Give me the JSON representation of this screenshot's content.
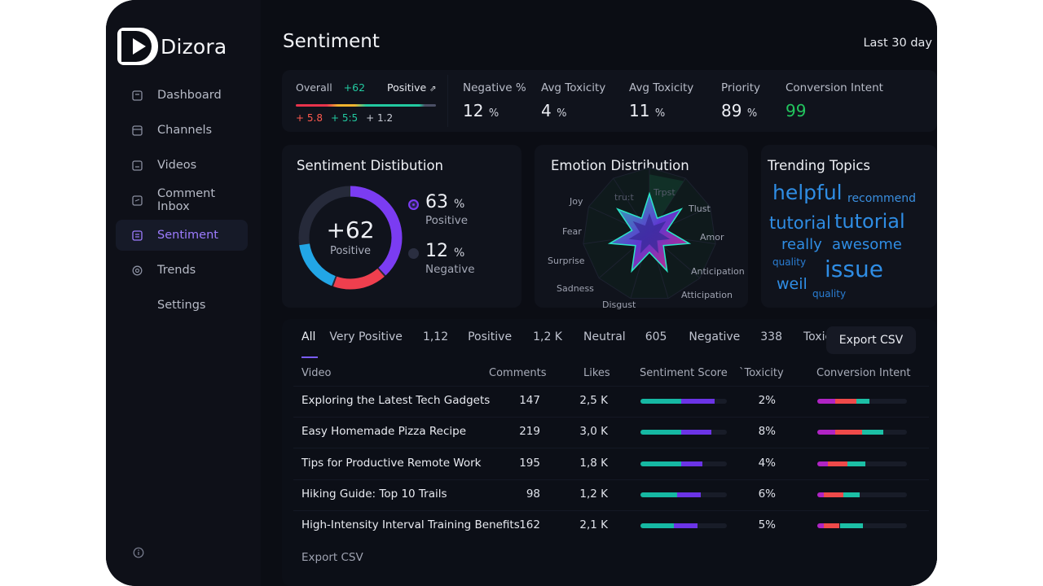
{
  "app": {
    "name": "Dizora"
  },
  "sidebar": {
    "items": [
      {
        "label": "Dashboard",
        "icon": "dashboard-icon"
      },
      {
        "label": "Channels",
        "icon": "channels-icon"
      },
      {
        "label": "Videos",
        "icon": "videos-icon"
      },
      {
        "label": "Comment Inbox",
        "icon": "comment-inbox-icon"
      },
      {
        "label": "Sentiment",
        "icon": "sentiment-icon",
        "active": true
      },
      {
        "label": "Trends",
        "icon": "trends-icon"
      },
      {
        "label": "Settings",
        "icon": ""
      }
    ]
  },
  "header": {
    "title": "Sentiment",
    "range": "Last 30  day"
  },
  "kpis": {
    "overall": {
      "label": "Overall",
      "score": "+62",
      "trend_label": "Positive",
      "trend_arrow": "⇗",
      "n1": "+ 5.8",
      "n2": "+ 5:5",
      "n3": "+ 1.2"
    },
    "negative": {
      "label": "Negative %",
      "value": "12",
      "unit": "%"
    },
    "toxicity1": {
      "label": "Avg Toxicity",
      "value": "4",
      "unit": "%"
    },
    "toxicity2": {
      "label": "Avg Toxicity",
      "value": "11",
      "unit": "%"
    },
    "priority": {
      "label": "Priority",
      "value": "89",
      "unit": "%"
    },
    "conversion": {
      "label": "Conversion Intent",
      "value": "99"
    }
  },
  "sentiment_distribution": {
    "title": "Sentiment Distibution",
    "center_value": "+62",
    "center_label": "Positive",
    "positive": {
      "value": "63",
      "unit": "%",
      "label": "Positive"
    },
    "negative": {
      "value": "12",
      "unit": "%",
      "label": "Negative"
    }
  },
  "emotion_distribution": {
    "title": "Emotion Distribution",
    "labels": [
      "Trpst",
      "Tlust",
      "Amor",
      "Anticipation",
      "Atticipation",
      "Disgust",
      "Sadness",
      "Surprise",
      "Fear",
      "Joy",
      "tru:t"
    ]
  },
  "trending_topics": {
    "title": "Trending Topics",
    "words": [
      "helpful",
      "recommend",
      "tutorial",
      "tutorial",
      "really",
      "awesome",
      "quality",
      "issue",
      "weil",
      "quality"
    ]
  },
  "table": {
    "filters": [
      "All",
      "Very Positive",
      "1,12",
      "Positive",
      "1,2 K",
      "Neutral",
      "605",
      "Negative",
      "338",
      "Toxic"
    ],
    "export_label": "Export CSV",
    "footer_export": "Export CSV",
    "columns": [
      "Video",
      "Comments",
      "Likes",
      "Sentiment Score",
      "`Toxicity",
      "Conversion Intent"
    ],
    "rows": [
      {
        "video": "Exploring the Latest Tech Gadgets",
        "comments": "147",
        "likes": "2,5 K",
        "toxicity": "2%",
        "score": 0.86,
        "score_pos": 0.47,
        "intent": [
          0.2,
          0.24,
          0.14
        ]
      },
      {
        "video": "Easy Homemade Pizza Recipe",
        "comments": "219",
        "likes": "3,0 K",
        "toxicity": "8%",
        "score": 0.82,
        "score_pos": 0.47,
        "intent": [
          0.2,
          0.3,
          0.24
        ]
      },
      {
        "video": "Tips for Productive Remote Work",
        "comments": "195",
        "likes": "1,8 K",
        "toxicity": "4%",
        "score": 0.72,
        "score_pos": 0.47,
        "intent": [
          0.12,
          0.22,
          0.2
        ]
      },
      {
        "video": "Hiking Guide: Top 10 Trails",
        "comments": "98",
        "likes": "1,2 K",
        "toxicity": "6%",
        "score": 0.7,
        "score_pos": 0.42,
        "intent": [
          0.07,
          0.22,
          0.18
        ]
      },
      {
        "video": "High-Intensity Interval Training Benefits",
        "comments": "162",
        "likes": "2,1 K",
        "toxicity": "5%",
        "score": 0.66,
        "score_pos": 0.39,
        "intent": [
          0.07,
          0.18,
          0.26
        ]
      }
    ]
  },
  "colors": {
    "accent": "#7a5cff",
    "positive": "#22c9a0",
    "negative": "#ff4d57",
    "blue": "#2f8de4"
  }
}
